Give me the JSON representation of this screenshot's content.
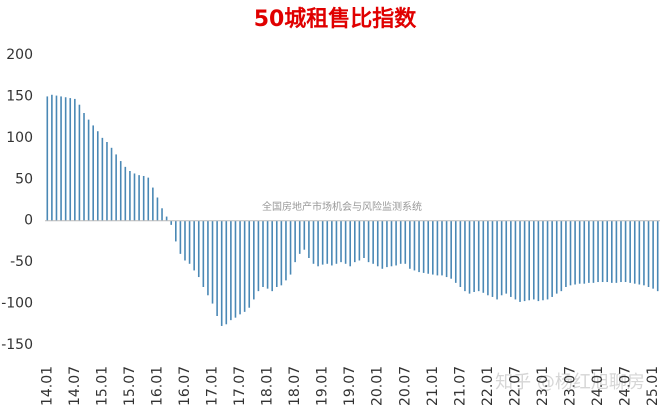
{
  "chart_data": {
    "type": "bar",
    "title": "50城租售比指数",
    "annotations": [
      "全国房地产市场机会与风险监测系统",
      "知乎 @杨红旭聊房"
    ],
    "color": "#4a88b5",
    "ylim": [
      -150,
      200
    ],
    "yticks": [
      -150,
      -100,
      -50,
      0,
      50,
      100,
      150,
      200
    ],
    "categories": [
      "14.01",
      null,
      null,
      null,
      null,
      null,
      "14.07",
      null,
      null,
      null,
      null,
      null,
      "15.01",
      null,
      null,
      null,
      null,
      null,
      "15.07",
      null,
      null,
      null,
      null,
      null,
      "16.01",
      null,
      null,
      null,
      null,
      null,
      "16.07",
      null,
      null,
      null,
      null,
      null,
      "17.01",
      null,
      null,
      null,
      null,
      null,
      "17.07",
      null,
      null,
      null,
      null,
      null,
      "18.01",
      null,
      null,
      null,
      null,
      null,
      "18.07",
      null,
      null,
      null,
      null,
      null,
      "19.01",
      null,
      null,
      null,
      null,
      null,
      "19.07",
      null,
      null,
      null,
      null,
      null,
      "20.01",
      null,
      null,
      null,
      null,
      null,
      "20.07",
      null,
      null,
      null,
      null,
      null,
      "21.01",
      null,
      null,
      null,
      null,
      null,
      "21.07",
      null,
      null,
      null,
      null,
      null,
      "22.01",
      null,
      null,
      null,
      null,
      null,
      "22.07",
      null,
      null,
      null,
      null,
      null,
      "23.01",
      null,
      null,
      null,
      null,
      null,
      "23.07",
      null,
      null,
      null,
      null,
      null,
      "24.01",
      null,
      null,
      null,
      null,
      null,
      "24.07",
      null,
      null,
      null,
      null,
      null,
      "25.01",
      null
    ],
    "values": [
      150,
      152,
      151,
      150,
      149,
      148,
      147,
      140,
      130,
      122,
      115,
      108,
      100,
      95,
      88,
      80,
      72,
      65,
      60,
      57,
      55,
      54,
      52,
      40,
      28,
      15,
      5,
      -5,
      -25,
      -40,
      -48,
      -52,
      -60,
      -68,
      -80,
      -90,
      -100,
      -115,
      -127,
      -125,
      -120,
      -117,
      -113,
      -110,
      -105,
      -95,
      -85,
      -80,
      -82,
      -85,
      -80,
      -78,
      -72,
      -65,
      -50,
      -40,
      -35,
      -45,
      -52,
      -55,
      -53,
      -52,
      -54,
      -52,
      -50,
      -52,
      -55,
      -50,
      -48,
      -45,
      -50,
      -52,
      -55,
      -58,
      -56,
      -55,
      -54,
      -52,
      -52,
      -58,
      -60,
      -62,
      -63,
      -64,
      -65,
      -66,
      -66,
      -68,
      -70,
      -75,
      -80,
      -85,
      -88,
      -86,
      -85,
      -87,
      -90,
      -92,
      -95,
      -90,
      -88,
      -92,
      -95,
      -98,
      -97,
      -96,
      -95,
      -97,
      -96,
      -95,
      -92,
      -88,
      -85,
      -80,
      -78,
      -77,
      -76,
      -76,
      -75,
      -75,
      -74,
      -74,
      -74,
      -75,
      -75,
      -74,
      -74,
      -75,
      -76,
      -77,
      -78,
      -80,
      -82,
      -85
    ]
  }
}
